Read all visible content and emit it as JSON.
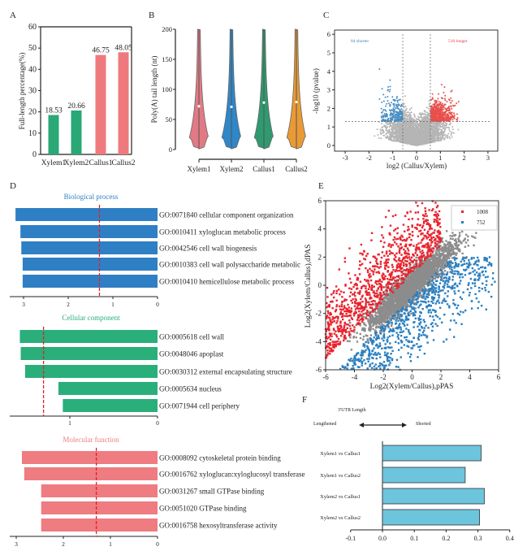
{
  "chart_data": [
    {
      "panel": "A",
      "type": "bar",
      "ylabel": "Full-length percentage(%)",
      "ylim": [
        0,
        60
      ],
      "yticks": [
        0,
        10,
        20,
        30,
        40,
        50,
        60
      ],
      "categories": [
        "Xylem1",
        "Xylem2",
        "Callus1",
        "Callus2"
      ],
      "values": [
        18.53,
        20.66,
        46.75,
        48.05
      ],
      "value_labels": [
        "18.53",
        "20.66",
        "46.75",
        "48.05"
      ],
      "colors": [
        "#2aa876",
        "#2aa876",
        "#ef7a7d",
        "#ef7a7d"
      ]
    },
    {
      "panel": "B",
      "type": "violin",
      "ylabel": "Poly(A) tail length (nt)",
      "ylim": [
        0,
        200
      ],
      "yticks": [
        0,
        50,
        100,
        150,
        200
      ],
      "categories": [
        "Xylem1",
        "Xylem2",
        "Callus1",
        "Callus2"
      ],
      "medians": [
        72,
        71,
        78,
        79
      ],
      "colors": [
        "#e27a85",
        "#2f86c8",
        "#2f9a6f",
        "#e99a35"
      ]
    },
    {
      "panel": "C",
      "type": "scatter",
      "xlabel": "log2 (Callus/Xylem)",
      "ylabel": "-log10 (pvalue)",
      "xlim": [
        -3.3,
        3.3
      ],
      "ylim": [
        -0.2,
        6.2
      ],
      "xticks": [
        -3,
        -2,
        -1,
        0,
        1,
        2,
        3
      ],
      "yticks": [
        0,
        1,
        2,
        3,
        4,
        5,
        6
      ],
      "thresholds": {
        "x": [
          -0.58,
          0.58
        ],
        "y": 1.3
      },
      "annotations": [
        {
          "text": "84 shorter",
          "color": "#3a7fc0"
        },
        {
          "text": "510 longer",
          "color": "#e0403c"
        }
      ],
      "colors": {
        "shorter": "#4a8fc4",
        "longer": "#e8504c",
        "ns": "#b5b5b5"
      }
    },
    {
      "panel": "D",
      "type": "bar",
      "xlim": [
        3.3,
        0
      ],
      "groups": [
        {
          "title": "Biological process",
          "color": "#2f7fc4",
          "xticks": [
            3,
            2,
            1,
            0
          ],
          "threshold": 1.3,
          "categories": [
            "GO:0071840 cellular component organization",
            "GO:0010411 xyloglucan metabolic process",
            "GO:0042546 cell wall biogenesis",
            "GO:0010383 cell wall polysaccharide metabolic",
            "GO:0010410 hemicellulose metabolic process"
          ],
          "values": [
            3.18,
            3.07,
            3.05,
            3.02,
            3.02
          ]
        },
        {
          "title": "Cellular component",
          "color": "#2aae7a",
          "xticks": [
            1,
            0
          ],
          "threshold": 1.3,
          "categories": [
            "GO:0005618 cell wall",
            "GO:0048046 apoplast",
            "GO:0030312 external encapsulating structure",
            "GO:0005634 nucleus",
            "GO:0071944 cell periphery"
          ],
          "values": [
            1.57,
            1.56,
            1.51,
            1.13,
            1.08
          ]
        },
        {
          "title": "Molecular function",
          "color": "#ee7c80",
          "xticks": [
            3,
            2,
            1,
            0
          ],
          "threshold": 1.3,
          "categories": [
            "GO:0008092 cytoskeletal protein binding",
            "GO:0016762 xyloglucan:xyloglucosyl transferase",
            "GO:0031267 small GTPase binding",
            "GO:0051020 GTPase binding",
            "GO:0016758 hexosyltransferase activity"
          ],
          "values": [
            2.88,
            2.83,
            2.47,
            2.47,
            2.47
          ]
        }
      ]
    },
    {
      "panel": "E",
      "type": "scatter",
      "xlabel": "Log2(Xylem/Callus),pPAS",
      "ylabel": "Log2(Xylem/Callus),dPAS",
      "xlim": [
        -6,
        6
      ],
      "ylim": [
        -6,
        6
      ],
      "xticks": [
        -6,
        -4,
        -2,
        0,
        2,
        4,
        6
      ],
      "yticks": [
        -6,
        -4,
        -2,
        0,
        2,
        4,
        6
      ],
      "legend": [
        {
          "label": "1008",
          "color": "#e8242e"
        },
        {
          "label": "752",
          "color": "#2a7fc0"
        }
      ],
      "legend_position": "top-right",
      "ns_color": "#8c8c8c"
    },
    {
      "panel": "F",
      "type": "bar",
      "header": "3'UTR Length",
      "left_label": "Lengthened",
      "right_label": "Shorted",
      "xlim": [
        -0.1,
        0.4
      ],
      "xticks": [
        "-0.1",
        "0.0",
        "0.1",
        "0.2",
        "0.3",
        "0.4"
      ],
      "categories": [
        "Xylem1  vs  Callus1",
        "Xylem1  vs  Callus2",
        "Xylem2  vs  Callus1",
        "Xylem2  vs  Callus2"
      ],
      "values": [
        0.31,
        0.26,
        0.32,
        0.305
      ],
      "color": "#6cc4dd"
    }
  ]
}
